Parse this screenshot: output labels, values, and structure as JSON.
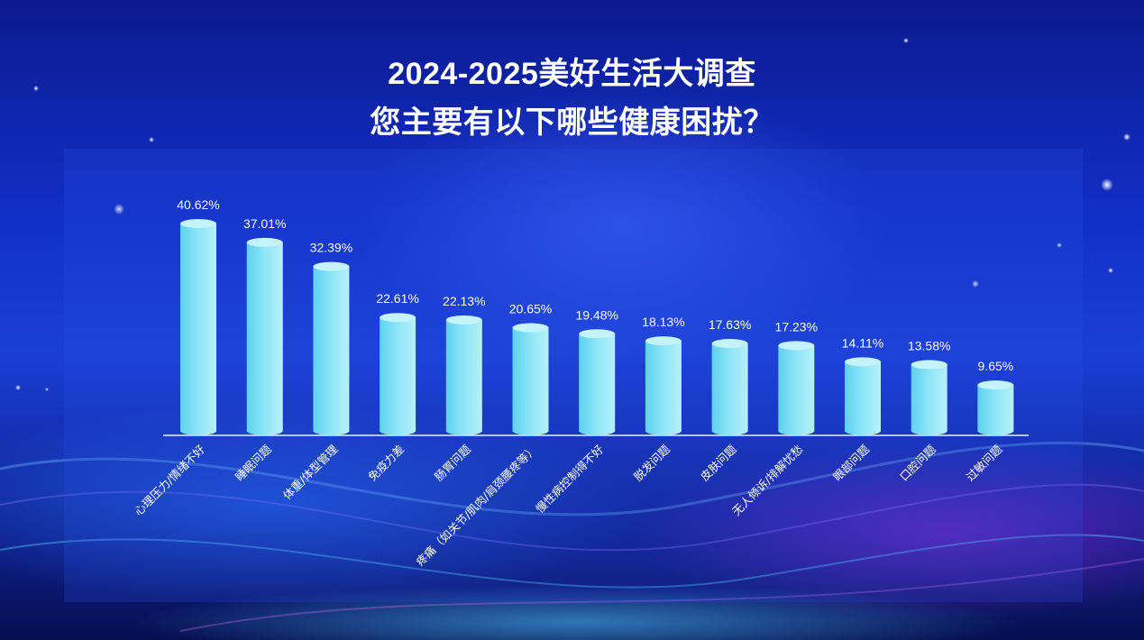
{
  "title_line1": "2024-2025美好生活大调查",
  "title_line2": "您主要有以下哪些健康困扰？",
  "chart_data": {
    "type": "bar",
    "categories": [
      "心理压力/情绪不好",
      "睡眠问题",
      "体重/体型管理",
      "免疫力差",
      "肠胃问题",
      "疼痛（如关节/肌肉/肩颈腰疼等）",
      "慢性病控制得不好",
      "脱发问题",
      "皮肤问题",
      "无人倾诉/排解忧愁",
      "眼部问题",
      "口腔问题",
      "过敏问题"
    ],
    "values": [
      40.62,
      37.01,
      32.39,
      22.61,
      22.13,
      20.65,
      19.48,
      18.13,
      17.63,
      17.23,
      14.11,
      13.58,
      9.65
    ],
    "value_labels": [
      "40.62%",
      "37.01%",
      "32.39%",
      "22.61%",
      "22.13%",
      "20.65%",
      "19.48%",
      "18.13%",
      "17.63%",
      "17.23%",
      "14.11%",
      "13.58%",
      "9.65%"
    ],
    "ylim": [
      0,
      40.62
    ],
    "xlabel": "",
    "ylabel": "",
    "grid": false,
    "legend": "none",
    "bar_style": "cylinder",
    "bar_color": "#7fe0f4"
  }
}
